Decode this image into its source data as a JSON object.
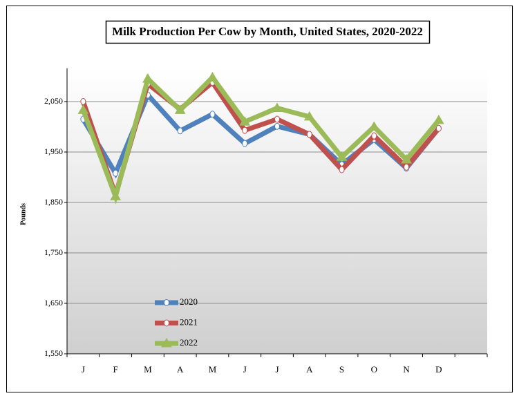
{
  "chart_data": {
    "type": "line",
    "title": "Milk Production Per Cow by Month, United States, 2020-2022",
    "y_label": "Pounds",
    "categories": [
      "J",
      "F",
      "M",
      "A",
      "M",
      "J",
      "J",
      "A",
      "S",
      "O",
      "N",
      "D",
      null
    ],
    "series": [
      {
        "name": "2020",
        "color": "#4f81bd",
        "marker": "circle",
        "values": [
          2015,
          1908,
          2063,
          1992,
          2025,
          1967,
          2001,
          1985,
          1925,
          1975,
          1918,
          1997,
          null
        ]
      },
      {
        "name": "2021",
        "color": "#c0504d",
        "marker": "circle",
        "values": [
          2050,
          1865,
          2085,
          2035,
          2088,
          1993,
          2015,
          1985,
          1915,
          1982,
          1920,
          1997,
          null
        ]
      },
      {
        "name": "2022",
        "color": "#9bbb59",
        "marker": "triangle",
        "values": [
          2033,
          1862,
          2095,
          2033,
          2098,
          2010,
          2037,
          2020,
          1940,
          2000,
          1935,
          2013,
          null
        ]
      }
    ],
    "ylim": [
      1550,
      2150
    ],
    "yticks": [
      {
        "value": 1550,
        "label": "1,550"
      },
      {
        "value": 1650,
        "label": "1,650"
      },
      {
        "value": 1750,
        "label": "1,750"
      },
      {
        "value": 1850,
        "label": "1,850"
      },
      {
        "value": 1950,
        "label": "1,950"
      },
      {
        "value": 2050,
        "label": "2,050"
      }
    ],
    "grid": true
  }
}
